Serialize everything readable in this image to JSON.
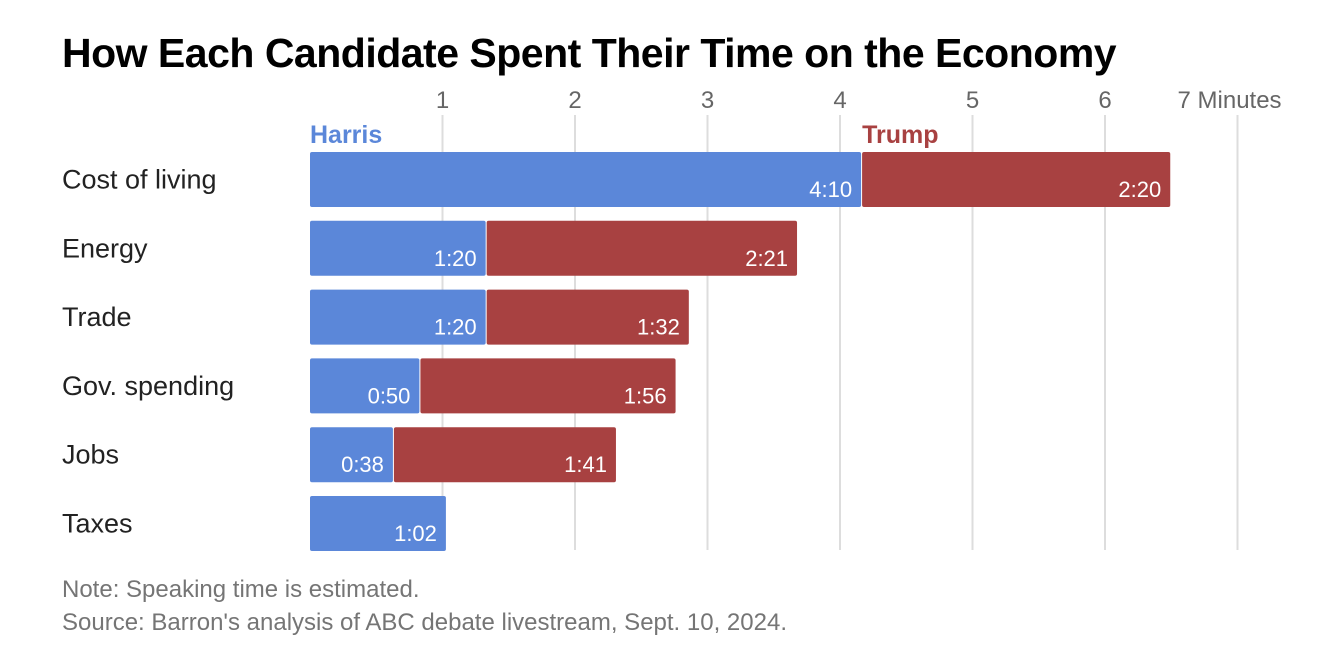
{
  "chart_data": {
    "type": "bar",
    "orientation": "horizontal",
    "stacked": true,
    "title": "How Each Candidate Spent Their Time on the Economy",
    "x_unit_label": "Minutes",
    "xlim": [
      0,
      7
    ],
    "x_ticks": [
      1,
      2,
      3,
      4,
      5,
      6,
      7
    ],
    "grid": true,
    "categories": [
      "Cost of living",
      "Energy",
      "Trade",
      "Gov. spending",
      "Jobs",
      "Taxes"
    ],
    "series": [
      {
        "name": "Harris",
        "color": "#5b87d9",
        "values": [
          4.1667,
          1.3333,
          1.3333,
          0.8333,
          0.6333,
          1.0333
        ],
        "labels": [
          "4:10",
          "1:20",
          "1:20",
          "0:50",
          "0:38",
          "1:02"
        ]
      },
      {
        "name": "Trump",
        "color": "#a84141",
        "values": [
          2.3333,
          2.35,
          1.5333,
          1.9333,
          1.6833,
          null
        ],
        "labels": [
          "2:20",
          "2:21",
          "1:32",
          "1:56",
          "1:41",
          null
        ]
      }
    ]
  },
  "footer": {
    "note": "Note: Speaking time is estimated.",
    "source": "Source: Barron's analysis of ABC debate livestream, Sept. 10, 2024."
  }
}
